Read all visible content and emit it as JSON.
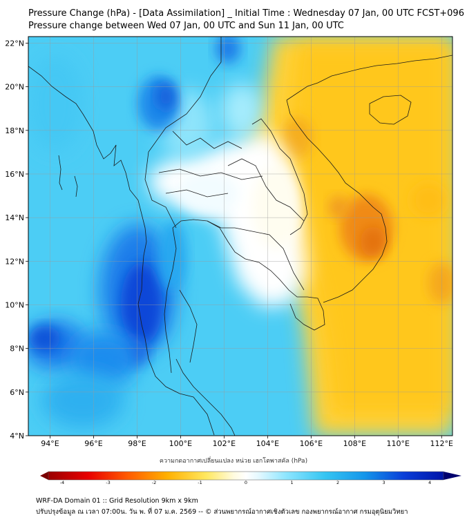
{
  "title": {
    "line1": "Pressure Change (hPa) - [Data Assimilation] _ Initial Time : Wednesday 07 Jan, 00 UTC FCST+096",
    "line2": "Pressure change between Wed 07 Jan, 00 UTC and Sun 11 Jan, 00 UTC"
  },
  "map": {
    "lat_labels": [
      "22°N",
      "20°N",
      "18°N",
      "16°N",
      "14°N",
      "12°N",
      "10°N",
      "8°N",
      "6°N",
      "4°N"
    ],
    "lon_labels": [
      "94°E",
      "96°E",
      "98°E",
      "100°E",
      "102°E",
      "104°E",
      "106°E",
      "108°E",
      "110°E",
      "112°E"
    ],
    "lat_range": [
      4,
      22.3
    ],
    "lon_range": [
      93,
      112.5
    ],
    "colors": {
      "strong_fall": "#0a2bd0",
      "fall": "#35c5f2",
      "neutral": "#ffffff",
      "rise": "#ffc71a",
      "strong_rise": "#ee7a10"
    }
  },
  "colorbar": {
    "title": "ความกดอากาศเปลี่ยนแปลง หน่วย เฮกโตพาสคัล (hPa)",
    "tick_labels": [
      "-4",
      "-3",
      "-2",
      "-1",
      "0",
      "1",
      "2",
      "3",
      "4"
    ],
    "range": [
      -4.3,
      4.3
    ],
    "low_color": "#7a0000",
    "high_color": "#00006e"
  },
  "footer": {
    "line1": "WRF-DA Domain 01 :: Grid Resolution 9km x 9km",
    "line2": "ปรับปรุงข้อมูล ณ เวลา 07:00น. วัน พ. ที่ 07 ม.ค. 2569 -- © ส่วนพยากรณ์อากาศเชิงตัวเลข กองพยากรณ์อากาศ กรมอุตุนิยมวิทยา"
  }
}
